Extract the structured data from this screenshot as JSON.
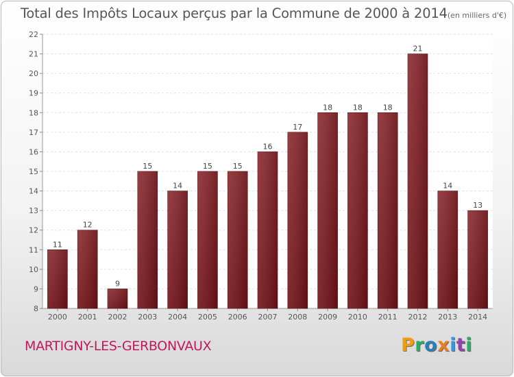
{
  "chart_data": {
    "type": "bar",
    "title": "Total des Impôts Locaux perçus par la Commune de 2000 à 2014",
    "unit": "(en milliers d'€)",
    "categories": [
      "2000",
      "2001",
      "2002",
      "2003",
      "2004",
      "2005",
      "2006",
      "2007",
      "2008",
      "2009",
      "2010",
      "2011",
      "2012",
      "2013",
      "2014"
    ],
    "values": [
      11,
      12,
      9,
      15,
      14,
      15,
      15,
      16,
      17,
      18,
      18,
      18,
      21,
      14,
      13
    ],
    "ylim": [
      8,
      22
    ],
    "yticks": [
      8,
      9,
      10,
      11,
      12,
      13,
      14,
      15,
      16,
      17,
      18,
      19,
      20,
      21,
      22
    ],
    "ytick_labels": [
      "8",
      "9",
      "10",
      "11",
      "12",
      "13",
      "14",
      "15",
      "16",
      "17",
      "18",
      "19",
      "20",
      "21",
      "22"
    ],
    "data_labels": [
      "11",
      "12",
      "9",
      "15",
      "14",
      "15",
      "15",
      "16",
      "17",
      "18",
      "18",
      "18",
      "21",
      "14",
      "13"
    ],
    "bar_color": "#6f1116",
    "grid": true
  },
  "commune": "MARTIGNY-LES-GERBONVAUX",
  "logo": {
    "text": "Proxiti",
    "letters": [
      "P",
      "r",
      "o",
      "x",
      "i",
      "t",
      "i"
    ],
    "colors": [
      "#f39c12",
      "#27ae60",
      "#2980b9",
      "#e67e22",
      "#3498db",
      "#8e44ad",
      "#27ae60"
    ]
  }
}
